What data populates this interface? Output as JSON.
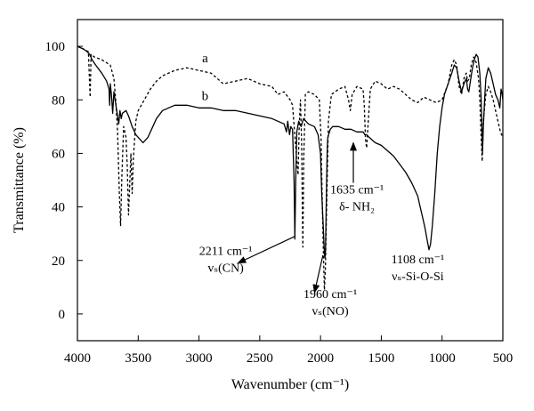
{
  "chart_data": {
    "type": "line",
    "xlabel": "Wavenumber (cm⁻¹)",
    "ylabel": "Transmittance (%)",
    "xlim": [
      4000,
      500
    ],
    "ylim": [
      -10,
      110
    ],
    "x_reversed": true,
    "grid": false,
    "legend": "none",
    "x_ticks": [
      4000,
      3500,
      3000,
      2500,
      2000,
      1500,
      1000,
      500
    ],
    "y_ticks": [
      0,
      20,
      40,
      60,
      80,
      100
    ],
    "series": [
      {
        "name": "a",
        "style": "dashed",
        "color": "#000000",
        "points": [
          [
            4000,
            100
          ],
          [
            3950,
            99
          ],
          [
            3910,
            98
          ],
          [
            3895,
            81
          ],
          [
            3888,
            97
          ],
          [
            3860,
            96
          ],
          [
            3800,
            95
          ],
          [
            3730,
            93
          ],
          [
            3700,
            88
          ],
          [
            3685,
            80
          ],
          [
            3670,
            68
          ],
          [
            3655,
            45
          ],
          [
            3645,
            33
          ],
          [
            3635,
            50
          ],
          [
            3620,
            70
          ],
          [
            3600,
            66
          ],
          [
            3590,
            55
          ],
          [
            3580,
            37
          ],
          [
            3570,
            48
          ],
          [
            3560,
            60
          ],
          [
            3550,
            45
          ],
          [
            3540,
            58
          ],
          [
            3520,
            72
          ],
          [
            3500,
            76
          ],
          [
            3450,
            80
          ],
          [
            3400,
            84
          ],
          [
            3350,
            87
          ],
          [
            3300,
            89
          ],
          [
            3200,
            91
          ],
          [
            3100,
            92
          ],
          [
            3000,
            91
          ],
          [
            2900,
            90
          ],
          [
            2850,
            88
          ],
          [
            2800,
            86
          ],
          [
            2700,
            87
          ],
          [
            2600,
            88
          ],
          [
            2500,
            86
          ],
          [
            2400,
            85
          ],
          [
            2350,
            82
          ],
          [
            2300,
            83
          ],
          [
            2250,
            80
          ],
          [
            2230,
            78
          ],
          [
            2200,
            60
          ],
          [
            2185,
            52
          ],
          [
            2175,
            70
          ],
          [
            2165,
            80
          ],
          [
            2155,
            63
          ],
          [
            2150,
            40
          ],
          [
            2145,
            25
          ],
          [
            2138,
            58
          ],
          [
            2125,
            82
          ],
          [
            2100,
            83
          ],
          [
            2050,
            82
          ],
          [
            2010,
            80
          ],
          [
            1995,
            65
          ],
          [
            1985,
            40
          ],
          [
            1975,
            20
          ],
          [
            1968,
            9
          ],
          [
            1960,
            17
          ],
          [
            1950,
            40
          ],
          [
            1935,
            72
          ],
          [
            1910,
            82
          ],
          [
            1850,
            84
          ],
          [
            1800,
            85
          ],
          [
            1770,
            80
          ],
          [
            1755,
            76
          ],
          [
            1740,
            82
          ],
          [
            1700,
            85
          ],
          [
            1650,
            84
          ],
          [
            1640,
            78
          ],
          [
            1630,
            65
          ],
          [
            1620,
            62
          ],
          [
            1610,
            70
          ],
          [
            1590,
            84
          ],
          [
            1550,
            87
          ],
          [
            1500,
            86
          ],
          [
            1450,
            84
          ],
          [
            1400,
            85
          ],
          [
            1350,
            84
          ],
          [
            1300,
            82
          ],
          [
            1250,
            80
          ],
          [
            1200,
            79
          ],
          [
            1150,
            81
          ],
          [
            1100,
            80
          ],
          [
            1050,
            79
          ],
          [
            1000,
            80
          ],
          [
            950,
            86
          ],
          [
            920,
            93
          ],
          [
            900,
            95
          ],
          [
            880,
            93
          ],
          [
            860,
            85
          ],
          [
            840,
            82
          ],
          [
            820,
            88
          ],
          [
            800,
            90
          ],
          [
            790,
            87
          ],
          [
            775,
            88
          ],
          [
            760,
            93
          ],
          [
            740,
            96
          ],
          [
            720,
            94
          ],
          [
            700,
            88
          ],
          [
            690,
            80
          ],
          [
            680,
            68
          ],
          [
            670,
            57
          ],
          [
            660,
            72
          ],
          [
            640,
            82
          ],
          [
            620,
            85
          ],
          [
            600,
            83
          ],
          [
            580,
            80
          ],
          [
            560,
            76
          ],
          [
            540,
            72
          ],
          [
            520,
            68
          ],
          [
            500,
            66
          ]
        ]
      },
      {
        "name": "b",
        "style": "solid",
        "color": "#000000",
        "points": [
          [
            4000,
            100
          ],
          [
            3950,
            99
          ],
          [
            3920,
            98
          ],
          [
            3900,
            97
          ],
          [
            3880,
            95
          ],
          [
            3850,
            93
          ],
          [
            3800,
            90
          ],
          [
            3760,
            87
          ],
          [
            3740,
            84
          ],
          [
            3735,
            78
          ],
          [
            3730,
            86
          ],
          [
            3720,
            82
          ],
          [
            3710,
            75
          ],
          [
            3700,
            83
          ],
          [
            3690,
            80
          ],
          [
            3680,
            77
          ],
          [
            3670,
            74
          ],
          [
            3660,
            71
          ],
          [
            3650,
            76
          ],
          [
            3640,
            73
          ],
          [
            3630,
            75
          ],
          [
            3600,
            76
          ],
          [
            3580,
            74
          ],
          [
            3550,
            70
          ],
          [
            3520,
            67
          ],
          [
            3500,
            66
          ],
          [
            3460,
            64
          ],
          [
            3420,
            66
          ],
          [
            3380,
            70
          ],
          [
            3350,
            73
          ],
          [
            3300,
            76
          ],
          [
            3250,
            77
          ],
          [
            3200,
            78
          ],
          [
            3100,
            78
          ],
          [
            3000,
            77
          ],
          [
            2900,
            77
          ],
          [
            2800,
            76
          ],
          [
            2700,
            76
          ],
          [
            2600,
            75
          ],
          [
            2500,
            74
          ],
          [
            2400,
            73
          ],
          [
            2350,
            72
          ],
          [
            2300,
            71
          ],
          [
            2280,
            68
          ],
          [
            2270,
            72
          ],
          [
            2255,
            67
          ],
          [
            2245,
            70
          ],
          [
            2230,
            69
          ],
          [
            2218,
            50
          ],
          [
            2211,
            28
          ],
          [
            2204,
            50
          ],
          [
            2195,
            68
          ],
          [
            2180,
            72
          ],
          [
            2160,
            70
          ],
          [
            2140,
            73
          ],
          [
            2100,
            71
          ],
          [
            2050,
            70
          ],
          [
            2020,
            67
          ],
          [
            2000,
            60
          ],
          [
            1990,
            45
          ],
          [
            1980,
            35
          ],
          [
            1970,
            25
          ],
          [
            1965,
            21
          ],
          [
            1960,
            22
          ],
          [
            1955,
            35
          ],
          [
            1950,
            50
          ],
          [
            1945,
            62
          ],
          [
            1940,
            66
          ],
          [
            1920,
            69
          ],
          [
            1900,
            70
          ],
          [
            1850,
            70
          ],
          [
            1800,
            69
          ],
          [
            1750,
            69
          ],
          [
            1700,
            68
          ],
          [
            1650,
            68
          ],
          [
            1635,
            67
          ],
          [
            1620,
            67
          ],
          [
            1600,
            66
          ],
          [
            1550,
            64
          ],
          [
            1500,
            63
          ],
          [
            1450,
            61
          ],
          [
            1400,
            59
          ],
          [
            1350,
            56
          ],
          [
            1300,
            53
          ],
          [
            1250,
            49
          ],
          [
            1200,
            44
          ],
          [
            1180,
            40
          ],
          [
            1160,
            36
          ],
          [
            1140,
            32
          ],
          [
            1120,
            27
          ],
          [
            1108,
            24
          ],
          [
            1095,
            26
          ],
          [
            1080,
            33
          ],
          [
            1060,
            45
          ],
          [
            1040,
            60
          ],
          [
            1020,
            70
          ],
          [
            1000,
            77
          ],
          [
            980,
            82
          ],
          [
            950,
            86
          ],
          [
            920,
            90
          ],
          [
            900,
            93
          ],
          [
            880,
            92
          ],
          [
            860,
            87
          ],
          [
            840,
            83
          ],
          [
            820,
            86
          ],
          [
            800,
            88
          ],
          [
            790,
            84
          ],
          [
            780,
            83
          ],
          [
            770,
            86
          ],
          [
            750,
            92
          ],
          [
            735,
            95
          ],
          [
            720,
            97
          ],
          [
            705,
            96
          ],
          [
            690,
            90
          ],
          [
            680,
            82
          ],
          [
            675,
            75
          ],
          [
            668,
            60
          ],
          [
            660,
            70
          ],
          [
            650,
            80
          ],
          [
            640,
            88
          ],
          [
            620,
            92
          ],
          [
            600,
            90
          ],
          [
            580,
            86
          ],
          [
            560,
            82
          ],
          [
            540,
            80
          ],
          [
            525,
            77
          ],
          [
            515,
            84
          ],
          [
            505,
            82
          ],
          [
            500,
            80
          ]
        ]
      }
    ],
    "series_tags": [
      {
        "text": "a",
        "x": 2950,
        "y": 94
      },
      {
        "text": "b",
        "x": 2950,
        "y": 80
      }
    ],
    "annotations": [
      {
        "lines": [
          "2211 cm⁻¹",
          "vₛ(CN)"
        ],
        "text_at": [
          2780,
          22
        ],
        "arrow_from": [
          2211,
          29
        ],
        "arrow_to": [
          2680,
          19
        ]
      },
      {
        "lines": [
          "1960 cm⁻¹",
          "vₛ(NO)"
        ],
        "text_at": [
          1920,
          6
        ],
        "arrow_from": [
          1980,
          22
        ],
        "arrow_to": [
          2050,
          8
        ]
      },
      {
        "lines": [
          "1635 cm⁻¹",
          "δ- NH₂"
        ],
        "text_at": [
          1700,
          45
        ],
        "arrow_from": [
          1730,
          49
        ],
        "arrow_to": [
          1730,
          64
        ]
      },
      {
        "lines": [
          "1108 cm⁻¹",
          "νₛ-Si-O-Si"
        ],
        "text_at": [
          1200,
          19
        ],
        "arrow_from": null,
        "arrow_to": null
      }
    ]
  }
}
